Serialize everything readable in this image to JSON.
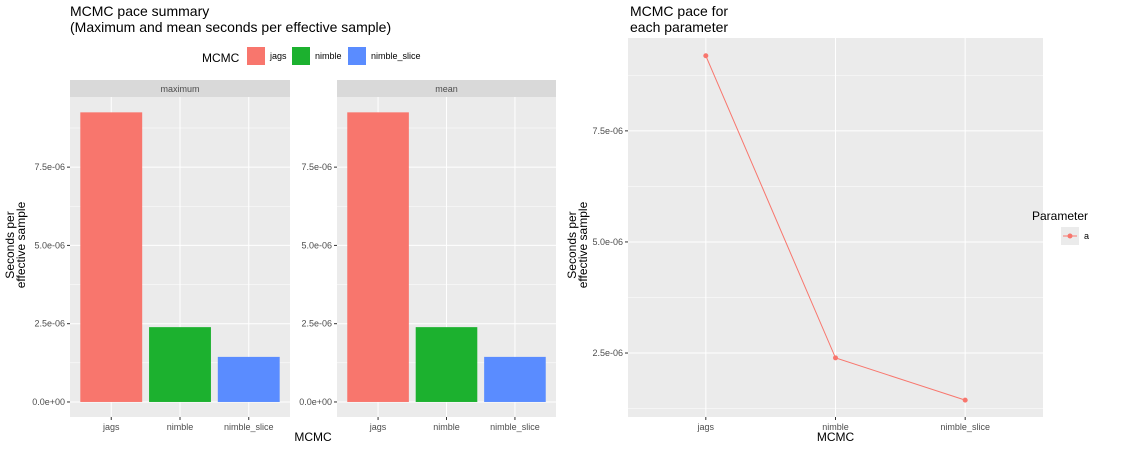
{
  "chart_data": [
    {
      "type": "bar",
      "title": "MCMC pace summary",
      "subtitle": " (Maximum and mean seconds per effective sample)",
      "xlabel": "MCMC",
      "ylabel": [
        "Seconds per",
        "effective sample"
      ],
      "legend": {
        "title": "MCMC",
        "placement": "top",
        "entries": [
          "jags",
          "nimble",
          "nimble_slice"
        ]
      },
      "colors": {
        "jags": "#F8766D",
        "nimble": "#1CB12F",
        "nimble_slice": "#5A8CFF"
      },
      "categories": [
        "jags",
        "nimble",
        "nimble_slice"
      ],
      "yticks": [
        0,
        2.5e-06,
        5e-06,
        7.5e-06
      ],
      "ytick_labels": [
        "0.0e+00",
        "2.5e-06",
        "5.0e-06",
        "7.5e-06"
      ],
      "ylim": [
        -4.8e-07,
        9.74e-06
      ],
      "grid": true,
      "facets": [
        {
          "label": "maximum",
          "values": [
            9.25e-06,
            2.39e-06,
            1.44e-06
          ]
        },
        {
          "label": "mean",
          "values": [
            9.25e-06,
            2.39e-06,
            1.44e-06
          ]
        }
      ]
    },
    {
      "type": "line",
      "title": "MCMC pace for",
      "subtitle": " each parameter",
      "xlabel": "MCMC",
      "ylabel": [
        "Seconds per",
        "effective sample"
      ],
      "categories": [
        "jags",
        "nimble",
        "nimble_slice"
      ],
      "yticks": [
        2.5e-06,
        5e-06,
        7.5e-06
      ],
      "ytick_labels": [
        "2.5e-06",
        "5.0e-06",
        "7.5e-06"
      ],
      "ylim": [
        1.06e-06,
        9.59e-06
      ],
      "grid": true,
      "legend": {
        "title": "Parameter",
        "placement": "right",
        "entries": [
          "a"
        ]
      },
      "series": [
        {
          "name": "a",
          "color": "#F8766D",
          "values": [
            9.19e-06,
            2.39e-06,
            1.44e-06
          ]
        }
      ]
    }
  ]
}
